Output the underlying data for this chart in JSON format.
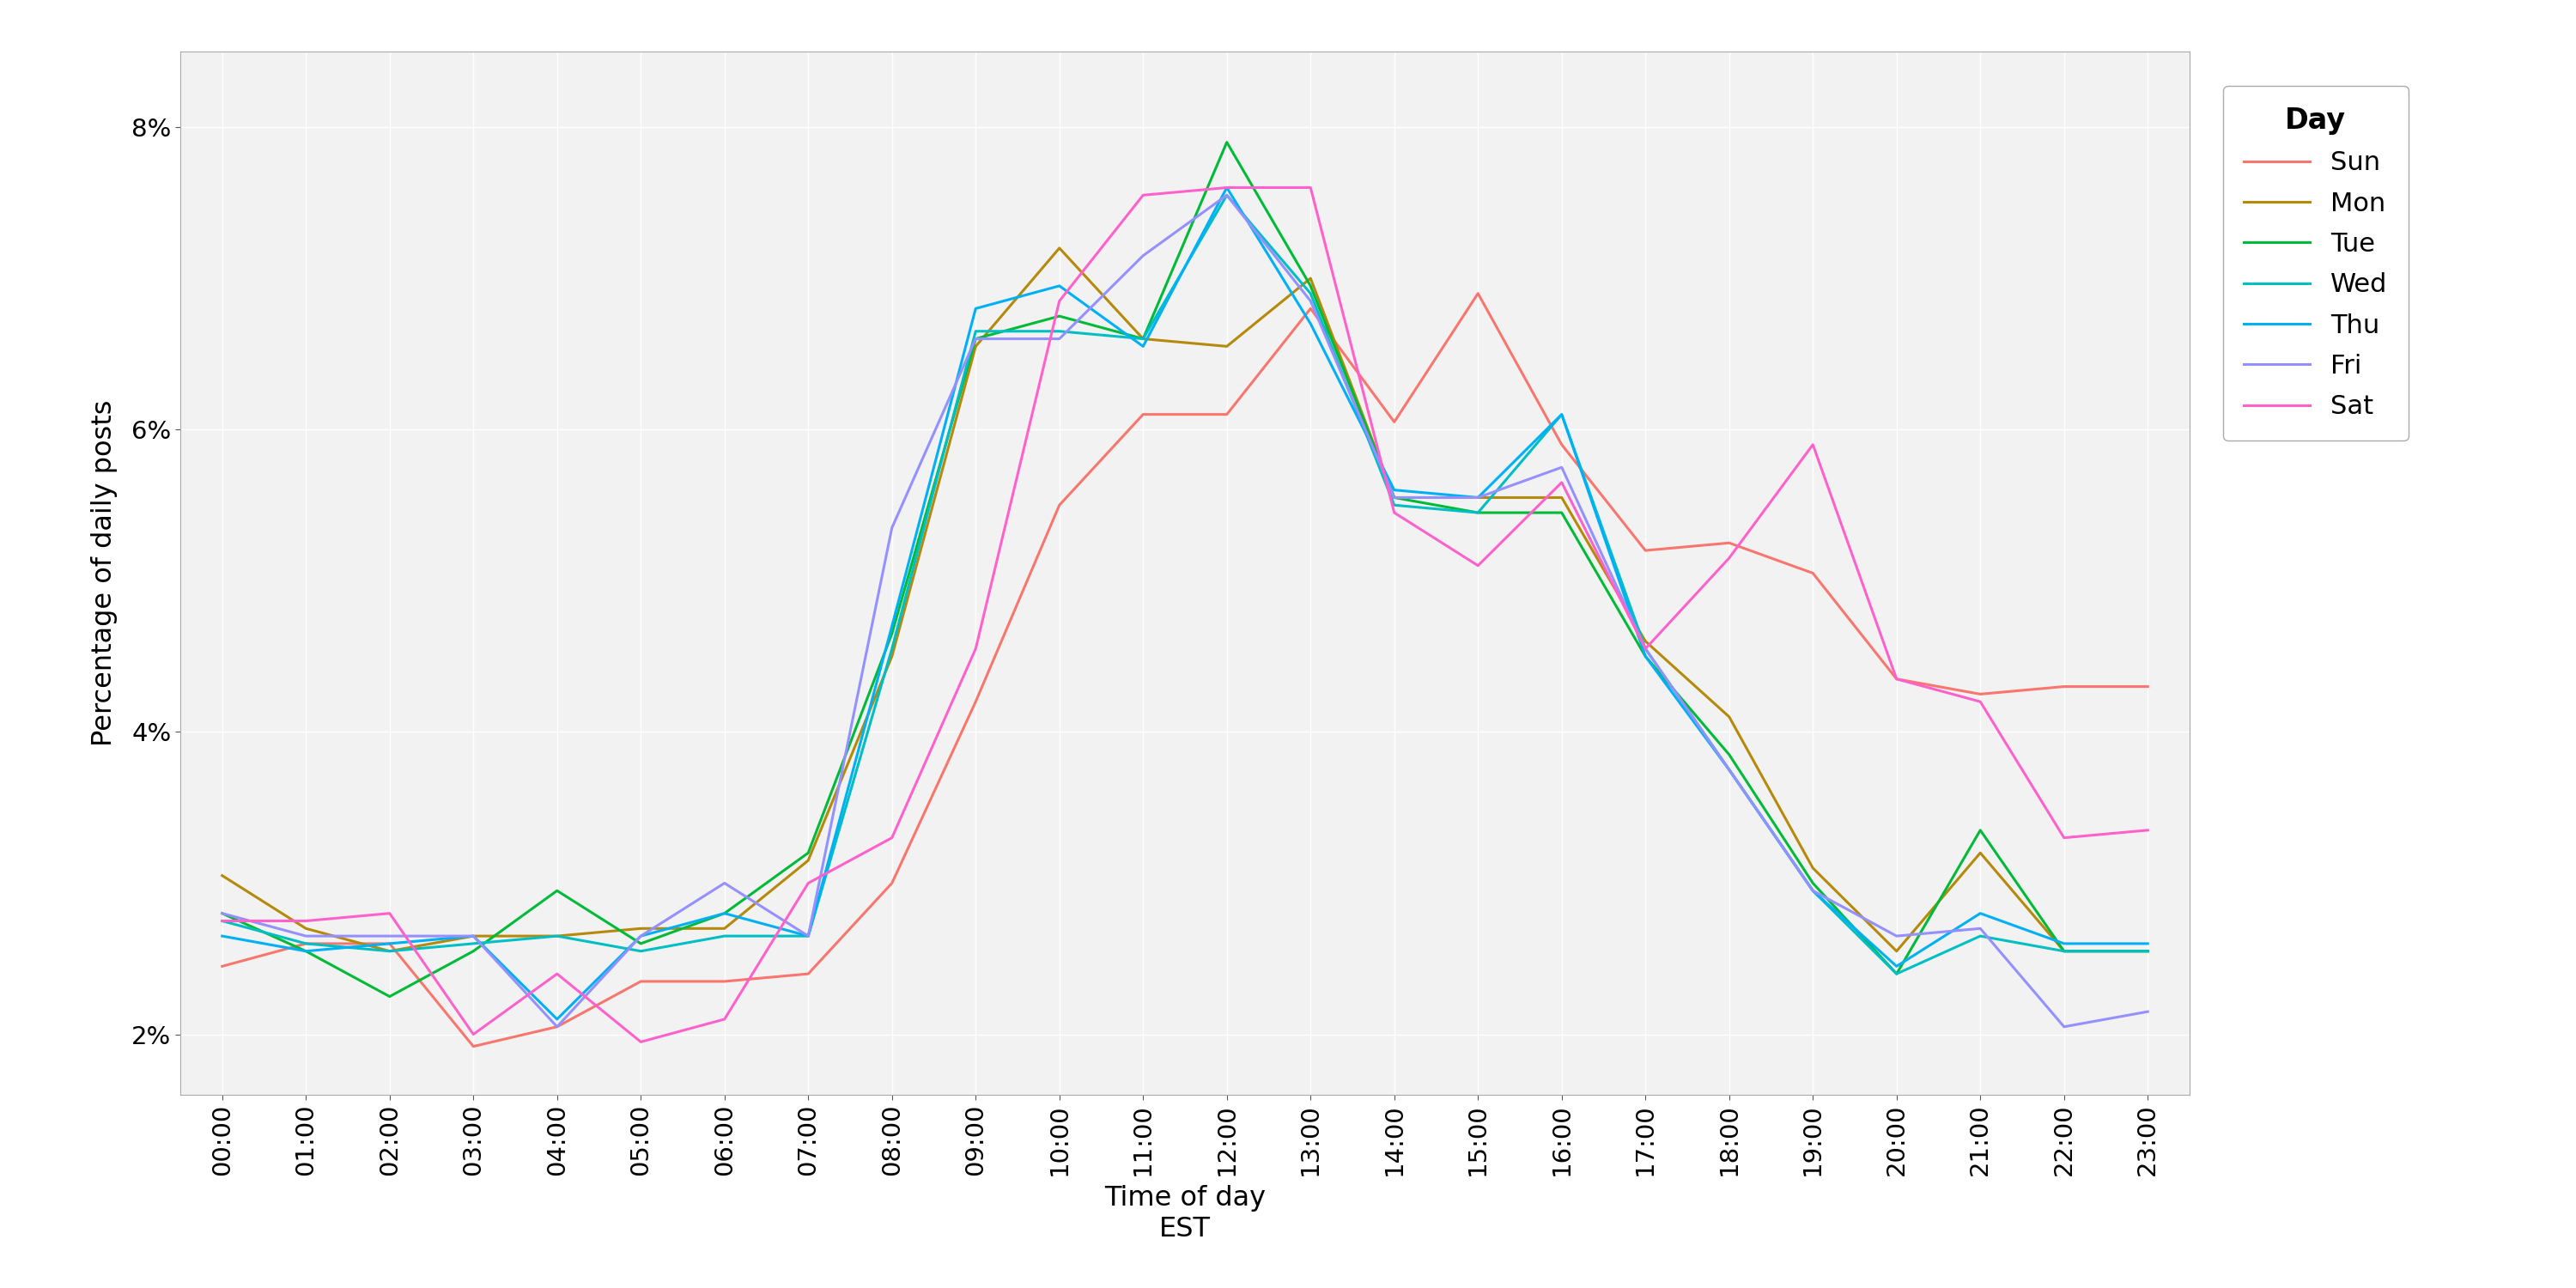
{
  "hours": [
    "00:00",
    "01:00",
    "02:00",
    "03:00",
    "04:00",
    "05:00",
    "06:00",
    "07:00",
    "08:00",
    "09:00",
    "10:00",
    "11:00",
    "12:00",
    "13:00",
    "14:00",
    "15:00",
    "16:00",
    "17:00",
    "18:00",
    "19:00",
    "20:00",
    "21:00",
    "22:00",
    "23:00"
  ],
  "series": {
    "Sun": [
      2.45,
      2.6,
      2.6,
      1.92,
      2.05,
      2.35,
      2.35,
      2.4,
      3.0,
      4.2,
      5.5,
      6.1,
      6.1,
      6.8,
      6.05,
      6.9,
      5.9,
      5.2,
      5.25,
      5.05,
      4.35,
      4.25,
      4.3,
      4.3
    ],
    "Mon": [
      3.05,
      2.7,
      2.55,
      2.65,
      2.65,
      2.7,
      2.7,
      3.15,
      4.5,
      6.55,
      7.2,
      6.6,
      6.55,
      7.0,
      5.55,
      5.55,
      5.55,
      4.6,
      4.1,
      3.1,
      2.55,
      3.2,
      2.55,
      2.55
    ],
    "Tue": [
      2.8,
      2.55,
      2.25,
      2.55,
      2.95,
      2.6,
      2.8,
      3.2,
      4.65,
      6.6,
      6.75,
      6.6,
      7.9,
      6.95,
      5.55,
      5.45,
      5.45,
      4.5,
      3.85,
      3.0,
      2.4,
      3.35,
      2.55,
      2.55
    ],
    "Wed": [
      2.75,
      2.6,
      2.55,
      2.6,
      2.65,
      2.55,
      2.65,
      2.65,
      4.55,
      6.65,
      6.65,
      6.6,
      7.55,
      6.9,
      5.5,
      5.45,
      6.1,
      4.55,
      3.75,
      2.95,
      2.4,
      2.65,
      2.55,
      2.55
    ],
    "Thu": [
      2.65,
      2.55,
      2.6,
      2.65,
      2.1,
      2.65,
      2.8,
      2.65,
      4.7,
      6.8,
      6.95,
      6.55,
      7.6,
      6.7,
      5.6,
      5.55,
      6.1,
      4.5,
      3.75,
      2.95,
      2.45,
      2.8,
      2.6,
      2.6
    ],
    "Fri": [
      2.8,
      2.65,
      2.65,
      2.65,
      2.05,
      2.65,
      3.0,
      2.65,
      5.35,
      6.6,
      6.6,
      7.15,
      7.55,
      6.85,
      5.55,
      5.55,
      5.75,
      4.55,
      3.75,
      2.95,
      2.65,
      2.7,
      2.05,
      2.15
    ],
    "Sat": [
      2.75,
      2.75,
      2.8,
      2.0,
      2.4,
      1.95,
      2.1,
      3.0,
      3.3,
      4.55,
      6.85,
      7.55,
      7.6,
      7.6,
      5.45,
      5.1,
      5.65,
      4.55,
      5.15,
      5.9,
      4.35,
      4.2,
      3.3,
      3.35
    ]
  },
  "colors": {
    "Sun": "#F8766D",
    "Mon": "#B5890A",
    "Tue": "#00BA38",
    "Wed": "#00BFC4",
    "Thu": "#00B0F6",
    "Fri": "#9590FF",
    "Sat": "#FF61CC"
  },
  "xlabel_line1": "Time of day",
  "xlabel_line2": "EST",
  "ylabel": "Percentage of daily posts",
  "ylim": [
    1.6,
    8.5
  ],
  "yticks": [
    2,
    4,
    6,
    8
  ],
  "plot_bg": "#f2f2f2",
  "fig_bg": "#ffffff",
  "grid_color": "#ffffff",
  "legend_title": "Day",
  "linewidth": 2.2
}
